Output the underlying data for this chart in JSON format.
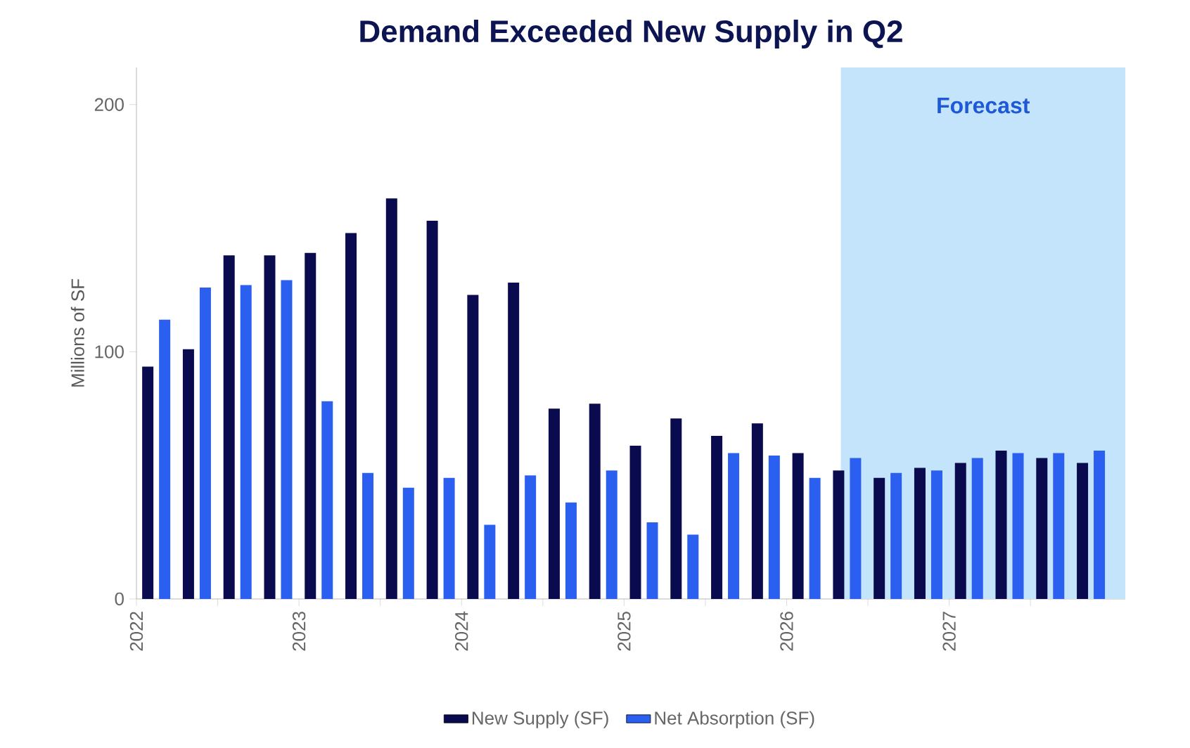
{
  "chart_data": {
    "type": "bar",
    "title": "Demand Exceeded New Supply in Q2",
    "ylabel": "Millions of SF",
    "x": [
      "2022-02-15",
      "2022-05-15",
      "2022-08-15",
      "2022-11-15",
      "2023-02-15",
      "2023-05-15",
      "2023-08-15",
      "2023-11-15",
      "2024-02-15",
      "2024-05-15",
      "2024-08-15",
      "2024-11-15",
      "2025-02-15",
      "2025-05-15",
      "2025-08-15",
      "2025-11-15",
      "2026-02-15",
      "2026-05-15",
      "2026-08-15",
      "2026-11-15",
      "2027-02-15",
      "2027-05-15",
      "2027-08-15",
      "2027-11-15"
    ],
    "series": [
      {
        "name": "New Supply (SF)",
        "color": "#0a0a4e",
        "values": [
          94,
          101,
          139,
          139,
          140,
          148,
          162,
          153,
          123,
          128,
          77,
          79,
          62,
          73,
          66,
          71,
          59,
          52,
          49,
          53,
          55,
          60,
          57,
          55
        ]
      },
      {
        "name": "Net Absorption (SF)",
        "color": "#2b5ff0",
        "values": [
          113,
          126,
          127,
          129,
          80,
          51,
          45,
          49,
          30,
          50,
          39,
          52,
          31,
          26,
          59,
          58,
          49,
          57,
          51,
          52,
          57,
          59,
          59,
          60
        ]
      }
    ],
    "xlim": [
      "2022-01-01",
      "2028-02-01"
    ],
    "xticks": [
      {
        "value": "2022",
        "label": "2022"
      },
      {
        "value": "2022-07",
        "label": null
      },
      {
        "value": "2023",
        "label": "2023"
      },
      {
        "value": "2023-07",
        "label": null
      },
      {
        "value": "2024",
        "label": "2024"
      },
      {
        "value": "2024-07",
        "label": null
      },
      {
        "value": "2025",
        "label": "2025"
      },
      {
        "value": "2025-07",
        "label": null
      },
      {
        "value": "2026",
        "label": "2026"
      },
      {
        "value": "2026-07",
        "label": null
      },
      {
        "value": "2027",
        "label": "2027"
      },
      {
        "value": "2027-07",
        "label": null
      }
    ],
    "ylim": [
      0,
      215
    ],
    "yticks": [
      0,
      100,
      200
    ],
    "bands": [
      {
        "axis": "x",
        "from": "2026-05-01",
        "to": "2028-02-01",
        "label": "Forecast",
        "color": "#c3e4fb"
      }
    ],
    "legend": "bottom",
    "grid": false
  }
}
